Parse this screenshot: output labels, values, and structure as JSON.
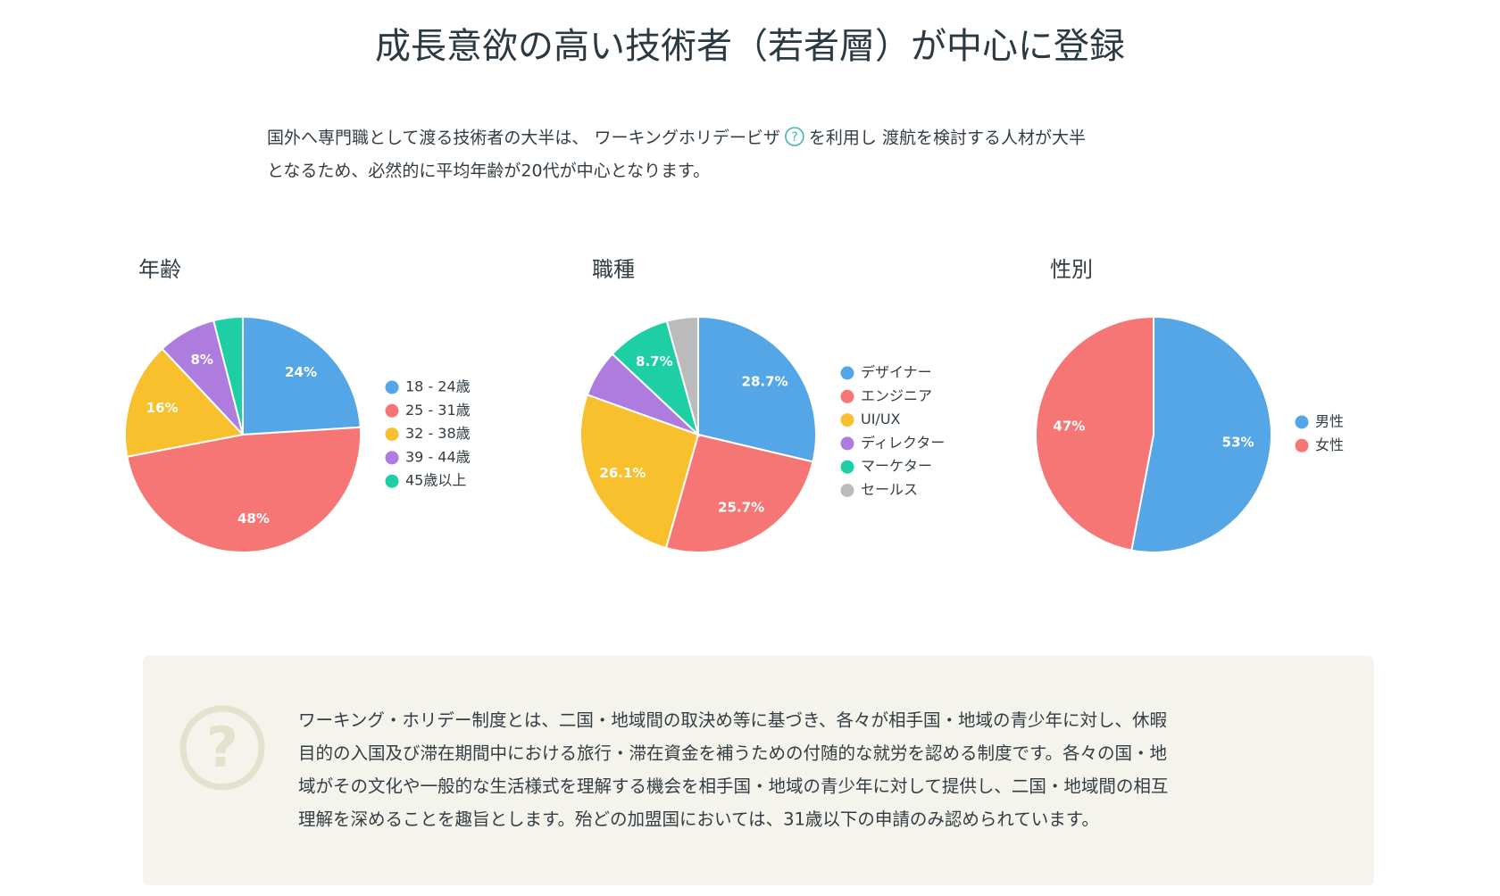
{
  "title": "成長意欲の高い技術者（若者層）が中心に登録",
  "intro": {
    "line1_before": "国外へ専門職として渡る技術者の大半は、 ワーキングホリデービザ",
    "line1_after": "を利用し 渡航を検討する人材が大半",
    "line2": "となるため、必然的に平均年齢が20代が中心となります。"
  },
  "chart_data": [
    {
      "type": "pie",
      "title": "年齢",
      "categories": [
        "18 - 24歳",
        "25 - 31歳",
        "32 - 38歳",
        "39 - 44歳",
        "45歳以上"
      ],
      "values": [
        24,
        48,
        16,
        8,
        4
      ],
      "value_labels": [
        "24%",
        "48%",
        "16%",
        "8%",
        null
      ],
      "colors": [
        "#55a6e6",
        "#f67676",
        "#f9c02d",
        "#ae7bde",
        "#1ecfa6"
      ]
    },
    {
      "type": "pie",
      "title": "職種",
      "categories": [
        "デザイナー",
        "エンジニア",
        "UI/UX",
        "ディレクター",
        "マーケター",
        "セールス"
      ],
      "values": [
        28.7,
        25.7,
        26.1,
        6.5,
        8.7,
        4.3
      ],
      "value_labels": [
        "28.7%",
        "25.7%",
        "26.1%",
        null,
        "8.7%",
        null
      ],
      "colors": [
        "#55a6e6",
        "#f67676",
        "#f9c02d",
        "#ae7bde",
        "#1ecfa6",
        "#bbbbbb"
      ]
    },
    {
      "type": "pie",
      "title": "性別",
      "categories": [
        "男性",
        "女性"
      ],
      "values": [
        53,
        47
      ],
      "value_labels": [
        "53%",
        "47%"
      ],
      "colors": [
        "#55a6e6",
        "#f67676"
      ]
    }
  ],
  "note": {
    "lines": [
      "ワーキング・ホリデー制度とは、二国・地域間の取決め等に基づき、各々が相手国・地域の青少年に対し、休暇",
      "目的の入国及び滞在期間中における旅行・滞在資金を補うための付随的な就労を認める制度です。各々の国・地",
      "域がその文化や一般的な生活様式を理解する機会を相手国・地域の青少年に対して提供し、二国・地域間の相互",
      "理解を深めることを趣旨とします。殆どの加盟国においては、31歳以下の申請のみ認められています。"
    ]
  }
}
